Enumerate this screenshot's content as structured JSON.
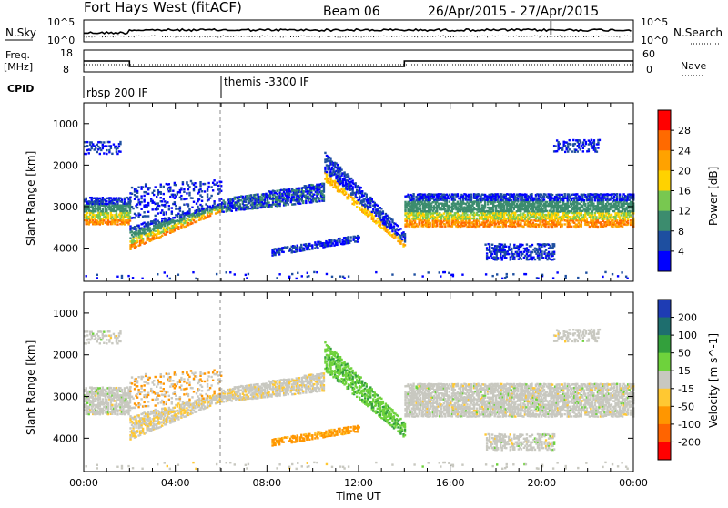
{
  "header": {
    "station": "Fort Hays West (fitACF)",
    "beam": "Beam 06",
    "dates": "26/Apr/2015 - 27/Apr/2015"
  },
  "top_panels": {
    "nsky_label": "N.Sky",
    "nsky_ticks": [
      "10^5",
      "10^0"
    ],
    "nsearch_label": "N.Search",
    "nsearch_ticks": [
      "10^5",
      "10^0"
    ],
    "freq_label": "Freq.",
    "freq_unit": "[MHz]",
    "freq_ticks": [
      "18",
      "8"
    ],
    "nave_label": "Nave",
    "nave_ticks": [
      "60",
      "0"
    ],
    "cpid_label": "CPID",
    "cpid_entries": [
      "rbsp 200 IF",
      "themis -3300 IF"
    ]
  },
  "power_panel": {
    "ylabel": "Slant Range [km]",
    "yticks": [
      "4000",
      "3000",
      "2000",
      "1000"
    ],
    "colorbar_label": "Power [dB]",
    "colorbar_ticks": [
      "28",
      "24",
      "20",
      "16",
      "12",
      "8",
      "4"
    ],
    "colorbar_colors": [
      "#ff0000",
      "#ff6a00",
      "#ffa200",
      "#ffd200",
      "#78c850",
      "#3c8c6e",
      "#1e4fa0",
      "#0000ff"
    ]
  },
  "velocity_panel": {
    "ylabel": "Slant Range [km]",
    "yticks": [
      "4000",
      "3000",
      "2000",
      "1000"
    ],
    "colorbar_label": "Velocity [m s^-1]",
    "colorbar_ticks": [
      "200",
      "100",
      "50",
      "15",
      "-15",
      "-50",
      "-100",
      "-200"
    ],
    "colorbar_colors": [
      "#1e3cb4",
      "#1e6e6e",
      "#33a03c",
      "#6ed23c",
      "#c8c8c0",
      "#ffc832",
      "#ff9600",
      "#ff6400",
      "#ff0000"
    ]
  },
  "x_axis": {
    "label": "Time UT",
    "ticks": [
      "00:00",
      "04:00",
      "08:00",
      "12:00",
      "16:00",
      "20:00",
      "00:00"
    ]
  },
  "chart_data": {
    "type": "heatmap",
    "x": {
      "unit": "hours UT",
      "range": [
        0,
        24
      ],
      "tick_values": [
        0,
        4,
        8,
        12,
        16,
        20,
        24
      ]
    },
    "y": {
      "unit": "km",
      "range": [
        200,
        4500
      ],
      "tick_values": [
        1000,
        2000,
        3000,
        4000
      ]
    },
    "power_scale_db": [
      4,
      8,
      12,
      16,
      20,
      24,
      28
    ],
    "velocity_scale_ms": [
      -200,
      -100,
      -50,
      -15,
      15,
      50,
      100,
      200
    ],
    "freq_steps_mhz": [
      {
        "t": 0,
        "f": 13
      },
      {
        "t": 2,
        "f": 10.5
      },
      {
        "t": 14,
        "f": 13
      },
      {
        "t": 24,
        "f": 13
      }
    ],
    "cpid_change_hours": [
      0,
      6
    ],
    "scatter_regions": [
      {
        "name": "main band early",
        "t0": 0,
        "t1": 2,
        "r0": 1550,
        "r1": 2200,
        "power": "strong",
        "velocity": "low"
      },
      {
        "name": "main band rising",
        "t0": 2,
        "t1": 6,
        "r0": 900,
        "r1": 2100,
        "power": "strong",
        "velocity": "low/negative"
      },
      {
        "name": "main band mid",
        "t0": 6,
        "t1": 10.5,
        "r0": 1800,
        "r1": 2600,
        "power": "weak",
        "velocity": "low/negative"
      },
      {
        "name": "arc to 12UT",
        "t0": 10.5,
        "t1": 14,
        "r0": 950,
        "r1": 3400,
        "power": "mixed",
        "velocity": "positive"
      },
      {
        "name": "lower band",
        "t0": 8,
        "t1": 12,
        "r0": 800,
        "r1": 1250,
        "power": "weak",
        "velocity": "negative"
      },
      {
        "name": "main band late",
        "t0": 14,
        "t1": 24,
        "r0": 1500,
        "r1": 2300,
        "power": "strong",
        "velocity": "low"
      },
      {
        "name": "patch 18-20UT",
        "t0": 17.5,
        "t1": 20.5,
        "r0": 700,
        "r1": 1100,
        "power": "weak",
        "velocity": "low"
      },
      {
        "name": "far range early",
        "t0": 0,
        "t1": 1.5,
        "r0": 3200,
        "r1": 3600,
        "power": "weak",
        "velocity": "low"
      },
      {
        "name": "far range late",
        "t0": 20.5,
        "t1": 22.5,
        "r0": 3300,
        "r1": 3600,
        "power": "weak",
        "velocity": "low"
      }
    ]
  }
}
